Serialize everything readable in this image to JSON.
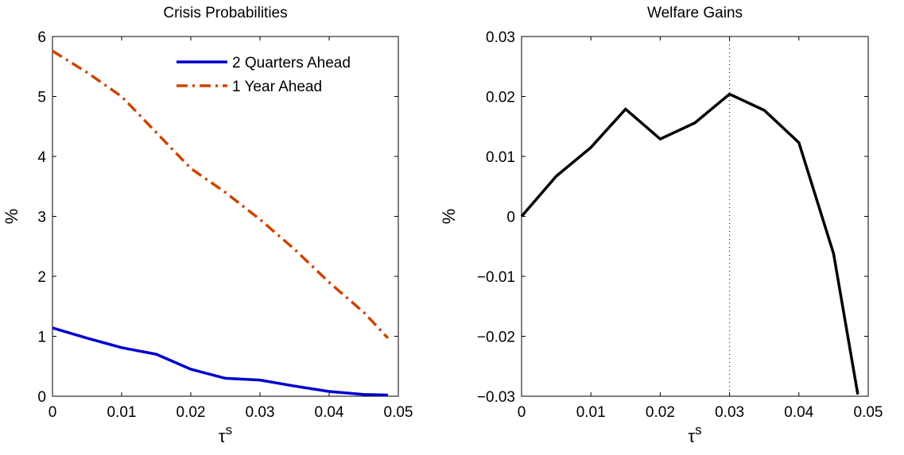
{
  "chart_data": [
    {
      "type": "line",
      "title": "Crisis Probabilities",
      "xlabel": "τ",
      "xlabel_sup": "s",
      "ylabel": "%",
      "xlim": [
        0,
        0.05
      ],
      "ylim": [
        0,
        6
      ],
      "xticks": [
        "0",
        "0.01",
        "0.02",
        "0.03",
        "0.04",
        "0.05"
      ],
      "yticks": [
        "0",
        "1",
        "2",
        "3",
        "4",
        "5",
        "6"
      ],
      "grid": false,
      "legend_position": "top-right",
      "series": [
        {
          "name": "2 Quarters Ahead",
          "color": "#0000cc",
          "style": "solid",
          "x": [
            0,
            0.005,
            0.01,
            0.015,
            0.02,
            0.025,
            0.03,
            0.035,
            0.04,
            0.045,
            0.0485
          ],
          "values": [
            1.14,
            0.97,
            0.81,
            0.7,
            0.45,
            0.3,
            0.27,
            0.17,
            0.08,
            0.03,
            0.02
          ]
        },
        {
          "name": "1 Year Ahead",
          "color": "#cc4400",
          "style": "dashdot",
          "x": [
            0,
            0.005,
            0.01,
            0.015,
            0.02,
            0.025,
            0.03,
            0.035,
            0.04,
            0.045,
            0.0485
          ],
          "values": [
            5.76,
            5.4,
            5.0,
            4.4,
            3.8,
            3.4,
            2.95,
            2.45,
            1.9,
            1.4,
            0.97
          ]
        }
      ]
    },
    {
      "type": "line",
      "title": "Welfare Gains",
      "xlabel": "τ",
      "xlabel_sup": "s",
      "ylabel": "%",
      "xlim": [
        0,
        0.05
      ],
      "ylim": [
        -0.03,
        0.03
      ],
      "xticks": [
        "0",
        "0.01",
        "0.02",
        "0.03",
        "0.04",
        "0.05"
      ],
      "yticks": [
        "−0.03",
        "−0.02",
        "−0.01",
        "0",
        "0.01",
        "0.02",
        "0.03"
      ],
      "grid": false,
      "reference_line_x": 0.03,
      "series": [
        {
          "color": "#000000",
          "style": "solid",
          "x": [
            0,
            0.005,
            0.01,
            0.015,
            0.02,
            0.025,
            0.03,
            0.035,
            0.04,
            0.045,
            0.0485
          ],
          "values": [
            0,
            0.0067,
            0.0115,
            0.0179,
            0.0129,
            0.0156,
            0.0204,
            0.0177,
            0.0123,
            -0.0062,
            -0.0297
          ]
        }
      ]
    }
  ]
}
